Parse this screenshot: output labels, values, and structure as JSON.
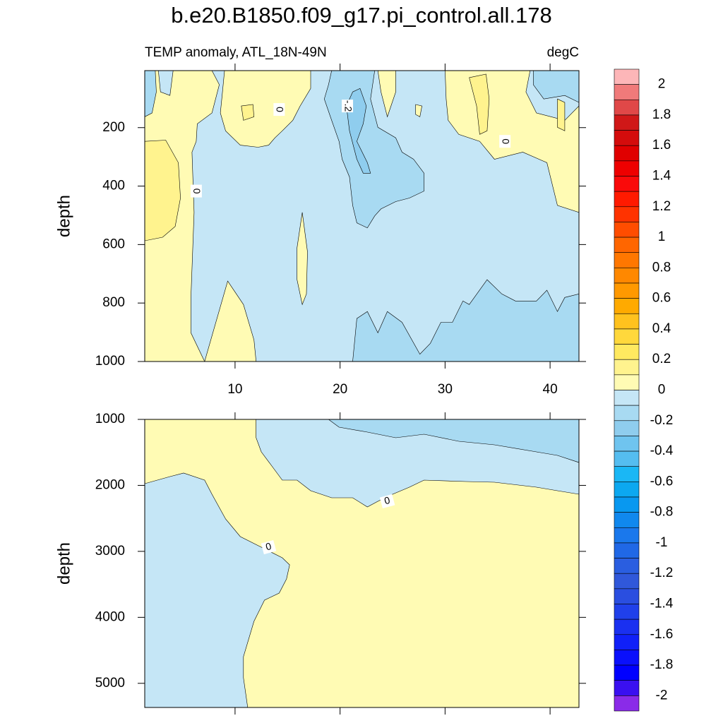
{
  "chart_data": [
    {
      "type": "contour",
      "title": "b.e20.B1850.f09_g17.pi_control.all.178",
      "subtitle_left": "TEMP anomaly, ATL_18N-49N",
      "subtitle_right": "degC",
      "y_label": "depth",
      "xlim": [
        1.4,
        42.75
      ],
      "xticks": [
        10,
        20,
        30,
        40
      ],
      "ylim": [
        5,
        1000
      ],
      "yticks": [
        200,
        400,
        600,
        800,
        1000
      ],
      "y_reversed": true,
      "background_level": -0.1,
      "regions": [
        {
          "level": 0,
          "points": [
            [
              1.4,
              5
            ],
            [
              2.7,
              5
            ],
            [
              2.9,
              78
            ],
            [
              3.8,
              90
            ],
            [
              4.1,
              5
            ],
            [
              7.8,
              5
            ],
            [
              8.5,
              53
            ],
            [
              7.8,
              150
            ],
            [
              6.4,
              187
            ],
            [
              6.3,
              247
            ],
            [
              5.9,
              284
            ],
            [
              6.1,
              490
            ],
            [
              5.9,
              684
            ],
            [
              5.8,
              781
            ],
            [
              5.8,
              902
            ],
            [
              7.1,
              1000
            ],
            [
              1.4,
              1000
            ]
          ]
        },
        {
          "level": 0.1,
          "points": [
            [
              1.4,
              247
            ],
            [
              3.4,
              243
            ],
            [
              4.6,
              320
            ],
            [
              4.8,
              441
            ],
            [
              4.3,
              538
            ],
            [
              3.1,
              575
            ],
            [
              1.4,
              587
            ]
          ]
        },
        {
          "level": -0.2,
          "points": [
            [
              1.4,
              5
            ],
            [
              2.4,
              5
            ],
            [
              2.5,
              78
            ],
            [
              2.1,
              150
            ],
            [
              1.4,
              163
            ]
          ]
        },
        {
          "level": 0,
          "points": [
            [
              7.1,
              1000
            ],
            [
              9.3,
              725
            ],
            [
              10.8,
              805
            ],
            [
              11.8,
              926
            ],
            [
              12.0,
              1000
            ]
          ]
        },
        {
          "level": 0,
          "points": [
            [
              9.0,
              5
            ],
            [
              17.2,
              5
            ],
            [
              17.2,
              66
            ],
            [
              16.2,
              126
            ],
            [
              15.5,
              175
            ],
            [
              14.5,
              211
            ],
            [
              13.8,
              235
            ],
            [
              13.2,
              260
            ],
            [
              12.2,
              267
            ],
            [
              10.5,
              260
            ],
            [
              9.1,
              211
            ],
            [
              8.6,
              150
            ],
            [
              8.8,
              78
            ]
          ]
        },
        {
          "level": 0.1,
          "points": [
            [
              10.6,
              126
            ],
            [
              11.7,
              121
            ],
            [
              11.8,
              163
            ],
            [
              10.8,
              175
            ]
          ]
        },
        {
          "level": 0,
          "points": [
            [
              16.4,
              490
            ],
            [
              16.9,
              625
            ],
            [
              16.8,
              769
            ],
            [
              16.4,
              805
            ],
            [
              15.9,
              720
            ],
            [
              15.9,
              611
            ]
          ]
        },
        {
          "level": 0,
          "points": [
            [
              23.6,
              5
            ],
            [
              25.3,
              5
            ],
            [
              25.3,
              78
            ],
            [
              24.5,
              163
            ],
            [
              23.9,
              78
            ]
          ]
        },
        {
          "level": 0,
          "points": [
            [
              27.2,
              121
            ],
            [
              27.8,
              126
            ],
            [
              27.6,
              163
            ],
            [
              27.2,
              155
            ]
          ]
        },
        {
          "level": 0,
          "points": [
            [
              30.0,
              5
            ],
            [
              38.1,
              5
            ],
            [
              37.7,
              78
            ],
            [
              38.7,
              150
            ],
            [
              41.4,
              175
            ],
            [
              42.75,
              126
            ],
            [
              42.75,
              490
            ],
            [
              40.7,
              466
            ],
            [
              39.7,
              320
            ],
            [
              37.4,
              284
            ],
            [
              34.7,
              308
            ],
            [
              33.3,
              247
            ],
            [
              31.3,
              223
            ],
            [
              30.3,
              175
            ],
            [
              30.1,
              102
            ]
          ]
        },
        {
          "level": 0.1,
          "points": [
            [
              32.3,
              29
            ],
            [
              33.9,
              17
            ],
            [
              34.2,
              102
            ],
            [
              34.0,
              211
            ],
            [
              33.3,
              223
            ],
            [
              33.0,
              126
            ]
          ]
        },
        {
          "level": 0.1,
          "points": [
            [
              40.7,
              102
            ],
            [
              41.4,
              114
            ],
            [
              41.4,
              211
            ],
            [
              40.7,
              199
            ]
          ]
        },
        {
          "level": -0.2,
          "points": [
            [
              38.4,
              5
            ],
            [
              42.75,
              5
            ],
            [
              42.75,
              114
            ],
            [
              41.4,
              90
            ],
            [
              39.4,
              102
            ],
            [
              38.4,
              53
            ]
          ]
        },
        {
          "level": -0.2,
          "points": [
            [
              19.2,
              5
            ],
            [
              23.3,
              5
            ],
            [
              22.9,
              102
            ],
            [
              23.6,
              199
            ],
            [
              25.3,
              235
            ],
            [
              25.9,
              284
            ],
            [
              27.0,
              308
            ],
            [
              28.0,
              356
            ],
            [
              28.0,
              417
            ],
            [
              26.6,
              441
            ],
            [
              25.3,
              453
            ],
            [
              23.9,
              478
            ],
            [
              23.3,
              502
            ],
            [
              22.6,
              543
            ],
            [
              21.6,
              526
            ],
            [
              21.2,
              466
            ],
            [
              20.9,
              369
            ],
            [
              20.2,
              308
            ],
            [
              19.9,
              247
            ],
            [
              19.2,
              175
            ],
            [
              18.5,
              102
            ],
            [
              18.9,
              53
            ]
          ]
        },
        {
          "level": -0.3,
          "points": [
            [
              21.2,
              78
            ],
            [
              21.9,
              66
            ],
            [
              22.5,
              126
            ],
            [
              22.2,
              187
            ],
            [
              21.6,
              247
            ],
            [
              22.6,
              320
            ],
            [
              22.9,
              356
            ],
            [
              22.2,
              356
            ],
            [
              21.6,
              308
            ],
            [
              20.9,
              211
            ],
            [
              20.6,
              126
            ]
          ]
        },
        {
          "level": -0.2,
          "points": [
            [
              21.2,
              1000
            ],
            [
              21.6,
              853
            ],
            [
              22.6,
              829
            ],
            [
              23.6,
              902
            ],
            [
              24.5,
              829
            ],
            [
              25.9,
              866
            ],
            [
              27.6,
              975
            ],
            [
              28.6,
              938
            ],
            [
              29.6,
              866
            ],
            [
              30.7,
              866
            ],
            [
              31.7,
              793
            ],
            [
              32.3,
              805
            ],
            [
              34.0,
              720
            ],
            [
              35.4,
              769
            ],
            [
              36.7,
              793
            ],
            [
              38.7,
              793
            ],
            [
              39.7,
              756
            ],
            [
              40.7,
              829
            ],
            [
              41.4,
              781
            ],
            [
              42.75,
              769
            ],
            [
              42.75,
              1000
            ]
          ]
        }
      ],
      "contour_labels": [
        {
          "text": "0",
          "x": 14.2,
          "y": 138
        },
        {
          "text": "-.2",
          "x": 20.7,
          "y": 126
        },
        {
          "text": "0",
          "x": 6.3,
          "y": 417
        },
        {
          "text": "0",
          "x": 35.7,
          "y": 247
        }
      ]
    },
    {
      "type": "contour",
      "y_label": "depth",
      "xlim": [
        1.4,
        42.75
      ],
      "ylim": [
        1000,
        5366
      ],
      "yticks": [
        1000,
        2000,
        3000,
        4000,
        5000
      ],
      "y_reversed": true,
      "background_level": 0,
      "regions": [
        {
          "level": -0.1,
          "points": [
            [
              1.4,
              1974
            ],
            [
              3.8,
              1867
            ],
            [
              5.1,
              1813
            ],
            [
              7.1,
              1920
            ],
            [
              7.8,
              2134
            ],
            [
              9.1,
              2509
            ],
            [
              10.5,
              2776
            ],
            [
              12.5,
              2937
            ],
            [
              14.5,
              3097
            ],
            [
              15.2,
              3204
            ],
            [
              14.9,
              3418
            ],
            [
              14.2,
              3632
            ],
            [
              12.8,
              3739
            ],
            [
              11.8,
              4060
            ],
            [
              10.8,
              4595
            ],
            [
              10.8,
              4916
            ],
            [
              11.2,
              5366
            ],
            [
              1.4,
              5366
            ]
          ]
        },
        {
          "level": -0.1,
          "points": [
            [
              12.0,
              1000
            ],
            [
              42.75,
              1000
            ],
            [
              42.75,
              2134
            ],
            [
              40.7,
              2081
            ],
            [
              38.7,
              2027
            ],
            [
              34.7,
              1952
            ],
            [
              32.0,
              1942
            ],
            [
              28.0,
              1920
            ],
            [
              26.6,
              2027
            ],
            [
              25.0,
              2134
            ],
            [
              23.6,
              2241
            ],
            [
              22.6,
              2327
            ],
            [
              21.2,
              2188
            ],
            [
              19.2,
              2188
            ],
            [
              17.2,
              2081
            ],
            [
              15.9,
              1920
            ],
            [
              14.5,
              1920
            ],
            [
              13.5,
              1706
            ],
            [
              12.5,
              1492
            ],
            [
              12.0,
              1278
            ]
          ]
        },
        {
          "level": -0.2,
          "points": [
            [
              18.9,
              1000
            ],
            [
              42.75,
              1000
            ],
            [
              42.75,
              1653
            ],
            [
              40.7,
              1546
            ],
            [
              38.7,
              1492
            ],
            [
              34.7,
              1385
            ],
            [
              31.3,
              1332
            ],
            [
              28.0,
              1225
            ],
            [
              25.3,
              1278
            ],
            [
              22.6,
              1193
            ],
            [
              19.9,
              1118
            ]
          ]
        }
      ],
      "contour_labels": [
        {
          "text": "0",
          "x": 24.5,
          "y": 2241
        },
        {
          "text": "0",
          "x": 13.2,
          "y": 2937
        }
      ]
    },
    {
      "type": "colorbar",
      "lim": [
        -2.1,
        2.1
      ],
      "ticks": [
        2,
        1.8,
        1.6,
        1.4,
        1.2,
        1,
        0.8,
        0.6,
        0.4,
        0.2,
        0,
        -0.2,
        -0.4,
        -0.6,
        -0.8,
        -1,
        -1.2,
        -1.4,
        -1.6,
        -1.8,
        -2
      ],
      "colors": [
        "#fdb6b8",
        "#f07a7a",
        "#e04848",
        "#d01818",
        "#d40c0c",
        "#e00000",
        "#ee0000",
        "#fa0a0a",
        "#ff1a00",
        "#ff3300",
        "#ff4d00",
        "#ff6600",
        "#ff7700",
        "#ff8800",
        "#ff9900",
        "#ffaa00",
        "#ffc21e",
        "#ffd83c",
        "#ffe960",
        "#fff38e",
        "#fffbb4",
        "#c5e6f6",
        "#a8daf2",
        "#8fcdee",
        "#6fc4ef",
        "#55bdf0",
        "#1ab7f5",
        "#0ca8f0",
        "#0898f0",
        "#1088ee",
        "#1a78ec",
        "#2068e6",
        "#2a5ee0",
        "#3058da",
        "#2a4ee0",
        "#2040ea",
        "#1a30f0",
        "#1020f8",
        "#0a10fc",
        "#0000ff",
        "#3a10f0",
        "#8a2be8"
      ]
    }
  ]
}
